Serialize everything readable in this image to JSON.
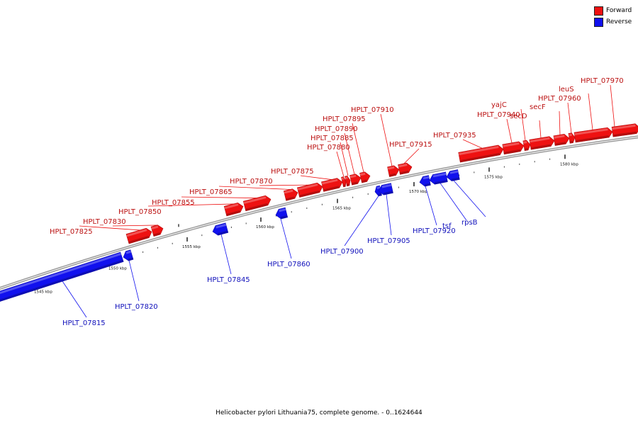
{
  "caption": "Helicobacter pylori Lithuania75, complete genome. - 0..1624644",
  "legend": {
    "forward_label": "Forward",
    "reverse_label": "Reverse",
    "forward_color": "#ee1111",
    "reverse_color": "#1111ee"
  },
  "scale": {
    "ticks": [
      {
        "kbp": 1545,
        "label": "1545 kbp"
      },
      {
        "kbp": 1550,
        "label": "1550 kbp"
      },
      {
        "kbp": 1555,
        "label": "1555 kbp"
      },
      {
        "kbp": 1560,
        "label": "1560 kbp"
      },
      {
        "kbp": 1565,
        "label": "1565 kbp"
      },
      {
        "kbp": 1570,
        "label": "1570 kbp"
      },
      {
        "kbp": 1575,
        "label": "1575 kbp"
      },
      {
        "kbp": 1580,
        "label": "1580 kbp"
      }
    ]
  },
  "genes": [
    {
      "name": "HPLT_07815",
      "strand": "reverse"
    },
    {
      "name": "HPLT_07820",
      "strand": "reverse"
    },
    {
      "name": "HPLT_07825",
      "strand": "forward"
    },
    {
      "name": "HPLT_07830",
      "strand": "forward"
    },
    {
      "name": "HPLT_07845",
      "strand": "reverse"
    },
    {
      "name": "HPLT_07850",
      "strand": "forward"
    },
    {
      "name": "HPLT_07855",
      "strand": "forward"
    },
    {
      "name": "HPLT_07860",
      "strand": "reverse"
    },
    {
      "name": "HPLT_07865",
      "strand": "forward"
    },
    {
      "name": "HPLT_07870",
      "strand": "forward"
    },
    {
      "name": "HPLT_07875",
      "strand": "forward"
    },
    {
      "name": "HPLT_07880",
      "strand": "forward"
    },
    {
      "name": "HPLT_07885",
      "strand": "forward"
    },
    {
      "name": "HPLT_07890",
      "strand": "forward"
    },
    {
      "name": "HPLT_07895",
      "strand": "forward"
    },
    {
      "name": "HPLT_07900",
      "strand": "reverse"
    },
    {
      "name": "HPLT_07905",
      "strand": "reverse"
    },
    {
      "name": "HPLT_07910",
      "strand": "forward"
    },
    {
      "name": "HPLT_07915",
      "strand": "forward"
    },
    {
      "name": "HPLT_07920",
      "strand": "reverse"
    },
    {
      "name": "tsf",
      "strand": "reverse"
    },
    {
      "name": "rpsB",
      "strand": "reverse"
    },
    {
      "name": "HPLT_07935",
      "strand": "forward"
    },
    {
      "name": "HPLT_07940",
      "strand": "forward"
    },
    {
      "name": "yajC",
      "strand": "forward"
    },
    {
      "name": "secD",
      "strand": "forward"
    },
    {
      "name": "secF",
      "strand": "forward"
    },
    {
      "name": "HPLT_07960",
      "strand": "forward"
    },
    {
      "name": "leuS",
      "strand": "forward"
    },
    {
      "name": "HPLT_07970",
      "strand": "forward"
    }
  ]
}
